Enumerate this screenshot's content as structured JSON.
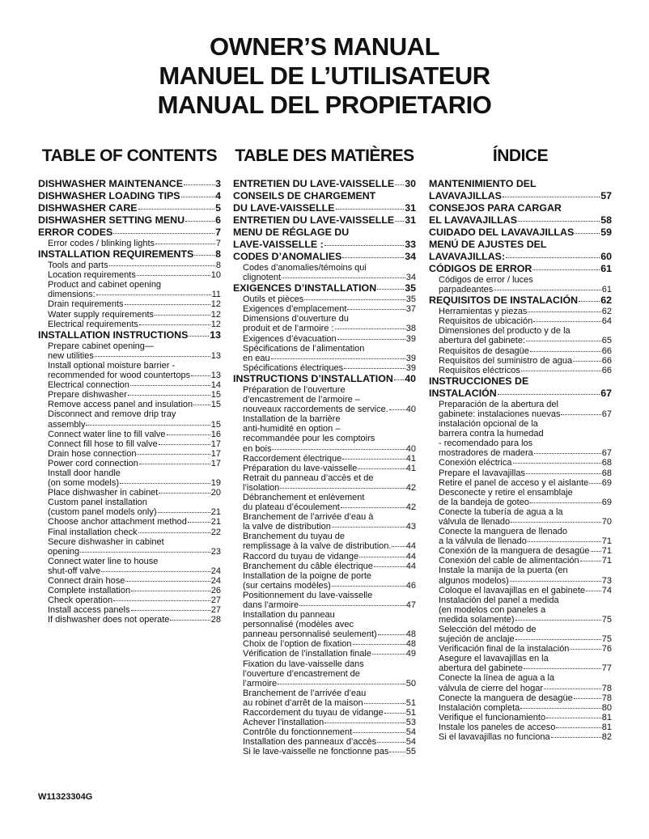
{
  "header": {
    "titles": [
      "OWNER’S MANUAL",
      "MANUEL DE L’UTILISATEUR",
      "MANUAL DEL PROPIETARIO"
    ]
  },
  "columns": [
    {
      "heading": "TABLE OF CONTENTS",
      "entries": [
        {
          "bold": true,
          "lines": [
            "DISHWASHER MAINTENANCE"
          ],
          "page": "3"
        },
        {
          "bold": true,
          "lines": [
            "DISHWASHER LOADING TIPS"
          ],
          "page": "4"
        },
        {
          "bold": true,
          "lines": [
            "DISHWASHER CARE"
          ],
          "page": "5"
        },
        {
          "bold": true,
          "lines": [
            "DISHWASHER SETTING MENU"
          ],
          "page": "6"
        },
        {
          "bold": true,
          "lines": [
            "ERROR CODES"
          ],
          "page": "7"
        },
        {
          "bold": false,
          "lines": [
            "Error codes / blinking lights"
          ],
          "page": "7"
        },
        {
          "bold": true,
          "lines": [
            "INSTALLATION REQUIREMENTS"
          ],
          "page": "8"
        },
        {
          "bold": false,
          "lines": [
            "Tools and parts"
          ],
          "page": "8"
        },
        {
          "bold": false,
          "lines": [
            "Location requirements"
          ],
          "page": "10"
        },
        {
          "bold": false,
          "lines": [
            "Product and cabinet opening",
            "dimensions:"
          ],
          "page": "11"
        },
        {
          "bold": false,
          "lines": [
            "Drain requirements"
          ],
          "page": "12"
        },
        {
          "bold": false,
          "lines": [
            "Water supply requirements"
          ],
          "page": "12"
        },
        {
          "bold": false,
          "lines": [
            "Electrical requirements"
          ],
          "page": "12"
        },
        {
          "bold": true,
          "lines": [
            "INSTALLATION INSTRUCTIONS"
          ],
          "page": "13"
        },
        {
          "bold": false,
          "lines": [
            "Prepare cabinet opening—",
            "new utilities"
          ],
          "page": "13"
        },
        {
          "bold": false,
          "lines": [
            "Install optional moisture barrier -",
            "recommended for wood countertops"
          ],
          "page": "13"
        },
        {
          "bold": false,
          "lines": [
            "Electrical connection"
          ],
          "page": "14"
        },
        {
          "bold": false,
          "lines": [
            "Prepare dishwasher"
          ],
          "page": "15"
        },
        {
          "bold": false,
          "lines": [
            "Remove access panel and insulation"
          ],
          "page": "15"
        },
        {
          "bold": false,
          "lines": [
            "Disconnect and remove drip tray",
            "assembly"
          ],
          "page": "15"
        },
        {
          "bold": false,
          "lines": [
            "Connect water line to fill valve"
          ],
          "page": "16"
        },
        {
          "bold": false,
          "lines": [
            "Connect fill hose to fill valve"
          ],
          "page": "17"
        },
        {
          "bold": false,
          "lines": [
            "Drain hose connection"
          ],
          "page": "17"
        },
        {
          "bold": false,
          "lines": [
            "Power cord connection"
          ],
          "page": "17"
        },
        {
          "bold": false,
          "lines": [
            "Install door handle",
            "(on some models)"
          ],
          "page": "19"
        },
        {
          "bold": false,
          "lines": [
            "Place dishwasher in cabinet"
          ],
          "page": "20"
        },
        {
          "bold": false,
          "lines": [
            "Custom panel installation",
            "(custom panel models only)"
          ],
          "page": "21"
        },
        {
          "bold": false,
          "lines": [
            "Choose anchor attachment method"
          ],
          "page": "21"
        },
        {
          "bold": false,
          "lines": [
            "Final installation check"
          ],
          "page": "22"
        },
        {
          "bold": false,
          "lines": [
            "Secure dishwasher in cabinet",
            "opening"
          ],
          "page": "23"
        },
        {
          "bold": false,
          "lines": [
            "Connect water line to house",
            "shut-off valve"
          ],
          "page": "24"
        },
        {
          "bold": false,
          "lines": [
            "Connect drain hose"
          ],
          "page": "24"
        },
        {
          "bold": false,
          "lines": [
            "Complete installation"
          ],
          "page": "26"
        },
        {
          "bold": false,
          "lines": [
            "Check operation"
          ],
          "page": "27"
        },
        {
          "bold": false,
          "lines": [
            "Install access panels"
          ],
          "page": "27"
        },
        {
          "bold": false,
          "lines": [
            "If dishwasher does not operate"
          ],
          "page": "28"
        }
      ]
    },
    {
      "heading": "TABLE DES MATIÈRES",
      "entries": [
        {
          "bold": true,
          "lines": [
            "ENTRETIEN DU LAVE-VAISSELLE"
          ],
          "page": "30"
        },
        {
          "bold": true,
          "lines": [
            "CONSEILS DE CHARGEMENT",
            "DU LAVE-VAISSELLE"
          ],
          "page": "31"
        },
        {
          "bold": true,
          "lines": [
            "ENTRETIEN DU LAVE-VAISSELLE"
          ],
          "page": "31"
        },
        {
          "bold": true,
          "lines": [
            "MENU DE RÉGLAGE DU",
            "LAVE-VAISSELLE :"
          ],
          "page": "33"
        },
        {
          "bold": true,
          "lines": [
            "CODES D’ANOMALIES"
          ],
          "page": "34"
        },
        {
          "bold": false,
          "lines": [
            "Codes d’anomalies/témoins qui",
            "clignotent"
          ],
          "page": "34"
        },
        {
          "bold": true,
          "lines": [
            "EXIGENCES D’INSTALLATION"
          ],
          "page": "35"
        },
        {
          "bold": false,
          "lines": [
            "Outils et pièces"
          ],
          "page": "35"
        },
        {
          "bold": false,
          "lines": [
            "Exigences d’emplacement"
          ],
          "page": "37"
        },
        {
          "bold": false,
          "lines": [
            "Dimensions d’ouverture du",
            "produit et de l’armoire :"
          ],
          "page": "38"
        },
        {
          "bold": false,
          "lines": [
            "Exigences d’évacuation"
          ],
          "page": "39"
        },
        {
          "bold": false,
          "lines": [
            "Spécifications de l’alimentation",
            "en eau"
          ],
          "page": "39"
        },
        {
          "bold": false,
          "lines": [
            "Spécifications électriques"
          ],
          "page": "39"
        },
        {
          "bold": true,
          "lines": [
            "INSTRUCTIONS D’INSTALLATION"
          ],
          "page": "40"
        },
        {
          "bold": false,
          "lines": [
            "Préparation de l’ouverture",
            "d’encastrement de l’armoire –",
            "nouveaux raccordements de service."
          ],
          "page": "40"
        },
        {
          "bold": false,
          "lines": [
            "Installation de la barrière",
            "anti-humidité en option –",
            "recommandée pour les comptoirs",
            "en bois"
          ],
          "page": "40"
        },
        {
          "bold": false,
          "lines": [
            "Raccordement électrique"
          ],
          "page": "41"
        },
        {
          "bold": false,
          "lines": [
            "Préparation du lave-vaisselle"
          ],
          "page": "41"
        },
        {
          "bold": false,
          "lines": [
            "Retrait du panneau d’accès et de",
            "l’isolation"
          ],
          "page": "42"
        },
        {
          "bold": false,
          "lines": [
            "Débranchement et enlèvement",
            "du plateau d’écoulement"
          ],
          "page": "42"
        },
        {
          "bold": false,
          "lines": [
            "Branchement de l’arrivée d’eau à",
            "la valve de distribution"
          ],
          "page": "43"
        },
        {
          "bold": false,
          "lines": [
            "Branchement du tuyau de",
            "remplissage à la valve de distribution."
          ],
          "page": "44"
        },
        {
          "bold": false,
          "lines": [
            "Raccord du tuyau de vidange"
          ],
          "page": "44"
        },
        {
          "bold": false,
          "lines": [
            "Branchement du câble électrique"
          ],
          "page": "44"
        },
        {
          "bold": false,
          "lines": [
            "Installation de la poigne de porte",
            "(sur certains modèles)"
          ],
          "page": "46"
        },
        {
          "bold": false,
          "lines": [
            "Positionnement du lave-vaisselle",
            "dans l’armoire"
          ],
          "page": "47"
        },
        {
          "bold": false,
          "lines": [
            "Installation du panneau",
            "personnalisé (modèles avec",
            "panneau personnalisé seulement)"
          ],
          "page": "48"
        },
        {
          "bold": false,
          "lines": [
            "Choix de l’option de fixation"
          ],
          "page": "48"
        },
        {
          "bold": false,
          "lines": [
            "Vérification de l’installation finale"
          ],
          "page": "49"
        },
        {
          "bold": false,
          "lines": [
            "Fixation du lave-vaisselle dans",
            "l’ouverture d’encastrement de",
            "l’armoire"
          ],
          "page": "50"
        },
        {
          "bold": false,
          "lines": [
            "Branchement de l’arrivée d’eau",
            "au robinet d’arrêt de la maison"
          ],
          "page": "51"
        },
        {
          "bold": false,
          "lines": [
            "Raccordement du tuyau de vidange"
          ],
          "page": "51"
        },
        {
          "bold": false,
          "lines": [
            "Achever l’installation"
          ],
          "page": "53"
        },
        {
          "bold": false,
          "lines": [
            "Contrôle du fonctionnement"
          ],
          "page": "54"
        },
        {
          "bold": false,
          "lines": [
            "Installation des panneaux d’accès"
          ],
          "page": "54"
        },
        {
          "bold": false,
          "lines": [
            "Si le lave-vaisselle ne fonctionne pas"
          ],
          "page": "55"
        }
      ]
    },
    {
      "heading": "ÍNDICE",
      "entries": [
        {
          "bold": true,
          "lines": [
            "MANTENIMIENTO DEL",
            "LAVAVAJILLAS"
          ],
          "page": "57"
        },
        {
          "bold": true,
          "lines": [
            "CONSEJOS PARA CARGAR",
            "EL LAVAVAJILLAS"
          ],
          "page": "58"
        },
        {
          "bold": true,
          "lines": [
            "CUIDADO DEL LAVAVAJILLAS"
          ],
          "page": "59"
        },
        {
          "bold": true,
          "lines": [
            "MENÚ DE AJUSTES DEL",
            "LAVAVAJILLAS:"
          ],
          "page": "60"
        },
        {
          "bold": true,
          "lines": [
            "CÓDIGOS DE ERROR"
          ],
          "page": "61"
        },
        {
          "bold": false,
          "lines": [
            "Códigos de error / luces",
            "parpadeantes"
          ],
          "page": "61"
        },
        {
          "bold": true,
          "lines": [
            "REQUISITOS DE INSTALACIÓN"
          ],
          "page": "62"
        },
        {
          "bold": false,
          "lines": [
            "Herramientas y piezas"
          ],
          "page": "62"
        },
        {
          "bold": false,
          "lines": [
            "Requisitos de ubicación"
          ],
          "page": "64"
        },
        {
          "bold": false,
          "lines": [
            "Dimensiones del producto y de la",
            "abertura del gabinete:"
          ],
          "page": "65"
        },
        {
          "bold": false,
          "lines": [
            "Requisitos de desagüe"
          ],
          "page": "66"
        },
        {
          "bold": false,
          "lines": [
            "Requisitos del suministro de agua"
          ],
          "page": "66"
        },
        {
          "bold": false,
          "lines": [
            "Requisitos eléctricos"
          ],
          "page": "66"
        },
        {
          "bold": true,
          "lines": [
            "INSTRUCCIONES DE",
            "INSTALACIÓN"
          ],
          "page": "67"
        },
        {
          "bold": false,
          "lines": [
            "Preparación de la abertura del",
            "gabinete: instalaciones nuevas"
          ],
          "page": "67"
        },
        {
          "bold": false,
          "lines": [
            "instalación opcional de la",
            "barrera contra la humedad",
            "- recomendado para los",
            "mostradores de madera"
          ],
          "page": "67"
        },
        {
          "bold": false,
          "lines": [
            "Conexión eléctrica"
          ],
          "page": "68"
        },
        {
          "bold": false,
          "lines": [
            "Prepare el lavavajillas"
          ],
          "page": "68"
        },
        {
          "bold": false,
          "lines": [
            "Retire el panel de acceso y el aislante"
          ],
          "page": "69"
        },
        {
          "bold": false,
          "lines": [
            "Desconecte y retire el ensamblaje",
            "de la bandeja de goteo"
          ],
          "page": "69"
        },
        {
          "bold": false,
          "lines": [
            "Conecte la tubería de agua a la",
            "válvula de llenado"
          ],
          "page": "70"
        },
        {
          "bold": false,
          "lines": [
            "Conecte la manguera de llenado",
            "a la válvula de llenado"
          ],
          "page": "71"
        },
        {
          "bold": false,
          "lines": [
            "Conexión de la manguera de desagüe"
          ],
          "page": "71"
        },
        {
          "bold": false,
          "lines": [
            "Conexión del cable de alimentación"
          ],
          "page": "71"
        },
        {
          "bold": false,
          "lines": [
            "Instale la manija de la puerta (en",
            "algunos modelos)"
          ],
          "page": "73"
        },
        {
          "bold": false,
          "lines": [
            "Coloque el lavavajillas en el gabinete"
          ],
          "page": "74"
        },
        {
          "bold": false,
          "lines": [
            "Instalación del panel a medida",
            "(en modelos con paneles a",
            "medida solamente)"
          ],
          "page": "75"
        },
        {
          "bold": false,
          "lines": [
            "Selección del método de",
            "sujeción de anclaje"
          ],
          "page": "75"
        },
        {
          "bold": false,
          "lines": [
            "Verificación final de la instalación"
          ],
          "page": "76"
        },
        {
          "bold": false,
          "lines": [
            "Asegure el lavavajillas en la",
            "abertura del gabinete"
          ],
          "page": "77"
        },
        {
          "bold": false,
          "lines": [
            "Conecte la línea de agua a la",
            "válvula de cierre del hogar"
          ],
          "page": "78"
        },
        {
          "bold": false,
          "lines": [
            "Conecte la manguera de desagüe"
          ],
          "page": "78"
        },
        {
          "bold": false,
          "lines": [
            "Instalación completa"
          ],
          "page": "80"
        },
        {
          "bold": false,
          "lines": [
            "Verifique el funcionamiento"
          ],
          "page": "81"
        },
        {
          "bold": false,
          "lines": [
            "Instale los paneles de acceso"
          ],
          "page": "81"
        },
        {
          "bold": false,
          "lines": [
            "Si el lavavajillas no funciona"
          ],
          "page": "82"
        }
      ]
    }
  ],
  "footer": {
    "code": "W11323304G"
  }
}
